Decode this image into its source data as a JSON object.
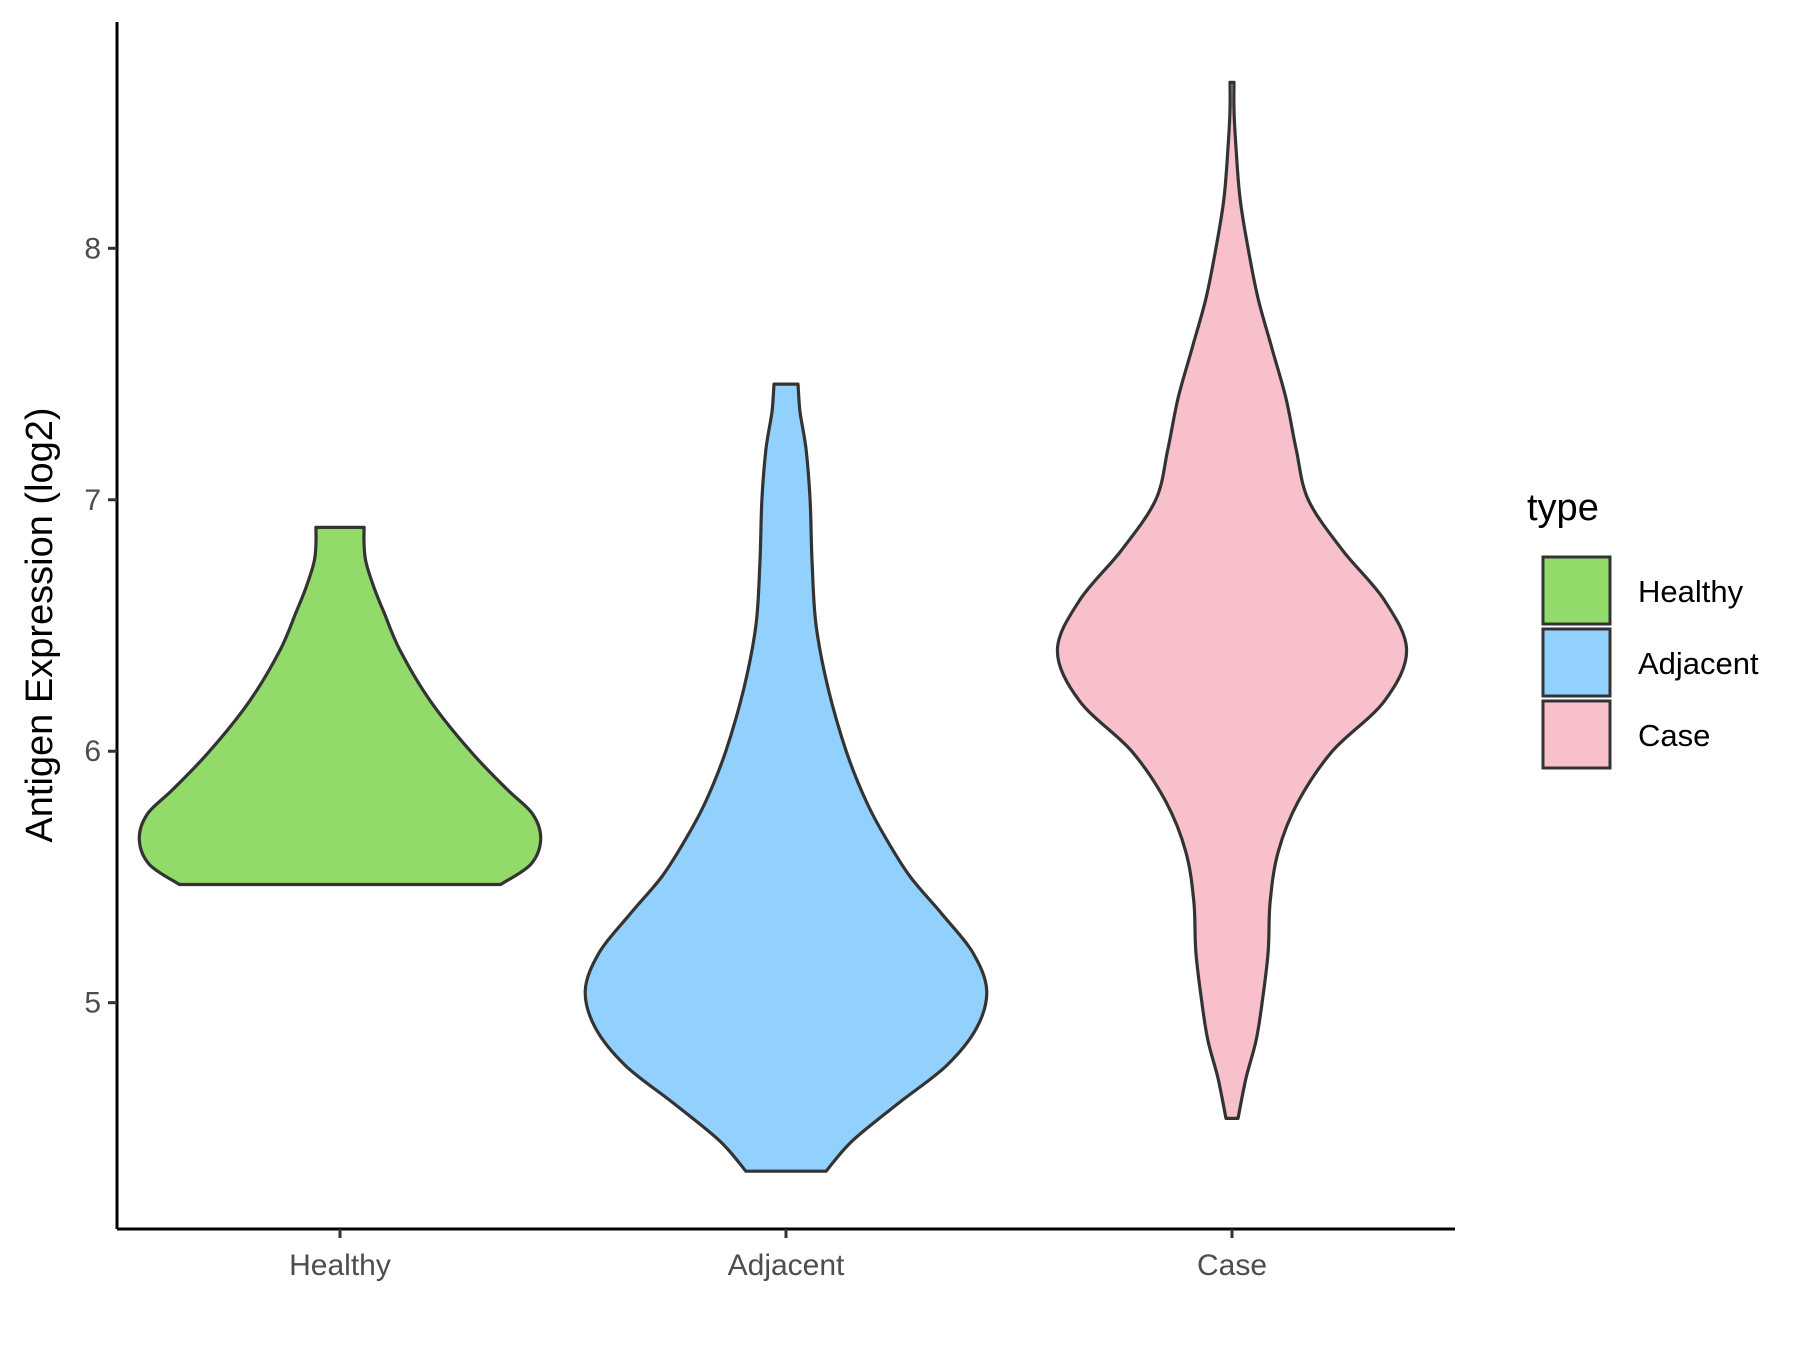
{
  "chart_data": {
    "type": "violin",
    "ylabel": "Antigen Expression (log2)",
    "xlabel": "",
    "categories": [
      "Healthy",
      "Adjacent",
      "Case"
    ],
    "ylim": [
      4.1,
      8.9
    ],
    "yticks": [
      5,
      6,
      7,
      8
    ],
    "grid": false,
    "legend": {
      "title": "type",
      "placement": "right",
      "entries": [
        "Healthy",
        "Adjacent",
        "Case"
      ]
    },
    "series": [
      {
        "name": "Healthy",
        "color": "#92db6b",
        "min": 5.47,
        "max": 6.89,
        "density": [
          [
            5.47,
            0.8
          ],
          [
            5.55,
            0.95
          ],
          [
            5.65,
            1.0
          ],
          [
            5.75,
            0.96
          ],
          [
            5.85,
            0.83
          ],
          [
            6.0,
            0.65
          ],
          [
            6.2,
            0.45
          ],
          [
            6.4,
            0.3
          ],
          [
            6.55,
            0.22
          ],
          [
            6.65,
            0.17
          ],
          [
            6.75,
            0.13
          ],
          [
            6.82,
            0.12
          ],
          [
            6.89,
            0.12
          ]
        ]
      },
      {
        "name": "Adjacent",
        "color": "#92d1fe",
        "min": 4.33,
        "max": 7.46,
        "density": [
          [
            4.33,
            0.2
          ],
          [
            4.45,
            0.33
          ],
          [
            4.6,
            0.56
          ],
          [
            4.75,
            0.8
          ],
          [
            4.9,
            0.95
          ],
          [
            5.05,
            1.0
          ],
          [
            5.2,
            0.93
          ],
          [
            5.35,
            0.78
          ],
          [
            5.5,
            0.62
          ],
          [
            5.65,
            0.5
          ],
          [
            5.8,
            0.4
          ],
          [
            6.0,
            0.3
          ],
          [
            6.25,
            0.21
          ],
          [
            6.5,
            0.15
          ],
          [
            6.75,
            0.13
          ],
          [
            7.0,
            0.12
          ],
          [
            7.2,
            0.1
          ],
          [
            7.35,
            0.07
          ],
          [
            7.46,
            0.06
          ]
        ]
      },
      {
        "name": "Case",
        "color": "#f7c0cb",
        "min": 4.54,
        "max": 8.66,
        "density": [
          [
            4.54,
            0.03
          ],
          [
            4.7,
            0.07
          ],
          [
            4.85,
            0.12
          ],
          [
            5.0,
            0.15
          ],
          [
            5.2,
            0.18
          ],
          [
            5.4,
            0.19
          ],
          [
            5.6,
            0.23
          ],
          [
            5.8,
            0.33
          ],
          [
            6.0,
            0.5
          ],
          [
            6.2,
            0.76
          ],
          [
            6.4,
            0.87
          ],
          [
            6.6,
            0.76
          ],
          [
            6.8,
            0.55
          ],
          [
            7.0,
            0.38
          ],
          [
            7.2,
            0.32
          ],
          [
            7.4,
            0.27
          ],
          [
            7.6,
            0.2
          ],
          [
            7.8,
            0.13
          ],
          [
            8.0,
            0.08
          ],
          [
            8.2,
            0.04
          ],
          [
            8.4,
            0.02
          ],
          [
            8.55,
            0.01
          ],
          [
            8.66,
            0.01
          ]
        ]
      }
    ]
  }
}
